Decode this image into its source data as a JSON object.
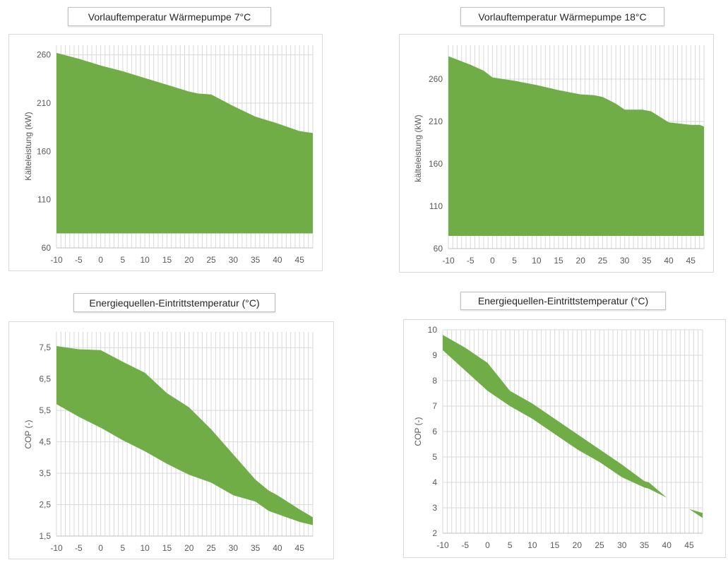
{
  "colors": {
    "fill": "#70AD47",
    "grid": "#d9d9d9",
    "text": "#595959"
  },
  "chart_data": [
    {
      "type": "area",
      "title": "Vorlauftemperatur Wärmepumpe 7°C",
      "xlabel": "",
      "ylabel": "Kälteleistung (kW)",
      "xlim": [
        -10,
        48
      ],
      "ylim": [
        60,
        270
      ],
      "xticks": [
        -10,
        -5,
        0,
        5,
        10,
        15,
        20,
        25,
        30,
        35,
        40,
        45
      ],
      "yticks": [
        60,
        110,
        160,
        210,
        260
      ],
      "ytick_labels": [
        "60",
        "110",
        "160",
        "210",
        "260"
      ],
      "x": [
        -10,
        -5,
        0,
        5,
        10,
        15,
        20,
        22,
        25,
        30,
        35,
        40,
        45,
        48
      ],
      "upper": [
        262,
        256,
        249,
        243,
        236,
        229,
        222,
        220,
        219,
        207,
        196,
        189,
        181,
        179
      ],
      "lower": [
        75,
        75,
        75,
        75,
        75,
        75,
        75,
        75,
        75,
        75,
        75,
        75,
        75,
        75
      ]
    },
    {
      "type": "area",
      "title": "Vorlauftemperatur Wärmepumpe 18°C",
      "xlabel": "",
      "ylabel": "kälteleistung (kW)",
      "xlim": [
        -10,
        48
      ],
      "ylim": [
        60,
        300
      ],
      "xticks": [
        -10,
        -5,
        0,
        5,
        10,
        15,
        20,
        25,
        30,
        35,
        40,
        45
      ],
      "yticks": [
        60,
        110,
        160,
        210,
        260
      ],
      "ytick_labels": [
        "60",
        "110",
        "160",
        "210",
        "260"
      ],
      "x": [
        -10,
        -5,
        -2,
        0,
        5,
        10,
        15,
        20,
        23,
        25,
        28,
        30,
        34,
        36,
        40,
        45,
        47,
        48
      ],
      "upper": [
        287,
        277,
        270,
        262,
        258,
        253,
        247,
        242,
        241,
        239,
        231,
        224,
        224,
        222,
        209,
        206,
        206,
        204
      ],
      "lower": [
        75,
        75,
        75,
        75,
        75,
        75,
        75,
        75,
        75,
        75,
        75,
        75,
        75,
        75,
        75,
        75,
        75,
        75
      ]
    },
    {
      "type": "area",
      "title": "Energiequellen-Eintrittstemperatur (°C)",
      "xlabel": "",
      "ylabel": "COP (-)",
      "xlim": [
        -10,
        48
      ],
      "ylim": [
        1.5,
        8
      ],
      "xticks": [
        -10,
        -5,
        0,
        5,
        10,
        15,
        20,
        25,
        30,
        35,
        40,
        45
      ],
      "yticks": [
        1.5,
        2.5,
        3.5,
        4.5,
        5.5,
        6.5,
        7.5
      ],
      "ytick_labels": [
        "1,5",
        "2,5",
        "3,5",
        "4,5",
        "5,5",
        "6,5",
        "7,5"
      ],
      "x": [
        -10,
        -5,
        0,
        5,
        10,
        15,
        20,
        25,
        30,
        35,
        38,
        40,
        45,
        48
      ],
      "upper": [
        7.55,
        7.45,
        7.42,
        7.05,
        6.7,
        6.05,
        5.6,
        4.9,
        4.1,
        3.3,
        2.95,
        2.8,
        2.35,
        2.1
      ],
      "lower": [
        5.7,
        5.3,
        4.95,
        4.55,
        4.2,
        3.8,
        3.45,
        3.2,
        2.8,
        2.6,
        2.3,
        2.2,
        1.95,
        1.85
      ]
    },
    {
      "type": "area",
      "title": "Energiequellen-Eintrittstemperatur (°C)",
      "xlabel": "",
      "ylabel": "COP (-)",
      "xlim": [
        -10,
        48
      ],
      "ylim": [
        2,
        10
      ],
      "xticks": [
        -10,
        -5,
        0,
        5,
        10,
        15,
        20,
        25,
        30,
        35,
        40,
        45
      ],
      "yticks": [
        2,
        3,
        4,
        5,
        6,
        7,
        8,
        9,
        10
      ],
      "ytick_labels": [
        "2",
        "3",
        "4",
        "5",
        "6",
        "7",
        "8",
        "9",
        "10"
      ],
      "x": [
        -10,
        -5,
        0,
        5,
        10,
        15,
        20,
        25,
        30,
        35,
        36,
        40,
        45,
        48
      ],
      "upper": [
        9.8,
        9.3,
        8.7,
        7.6,
        7.1,
        6.5,
        5.9,
        5.3,
        4.7,
        4.05,
        4.0,
        3.4,
        2.95,
        2.8
      ],
      "lower": [
        9.2,
        8.4,
        7.6,
        7.0,
        6.5,
        5.9,
        5.3,
        4.8,
        4.2,
        3.8,
        3.75,
        3.4,
        2.95,
        2.6
      ]
    }
  ]
}
